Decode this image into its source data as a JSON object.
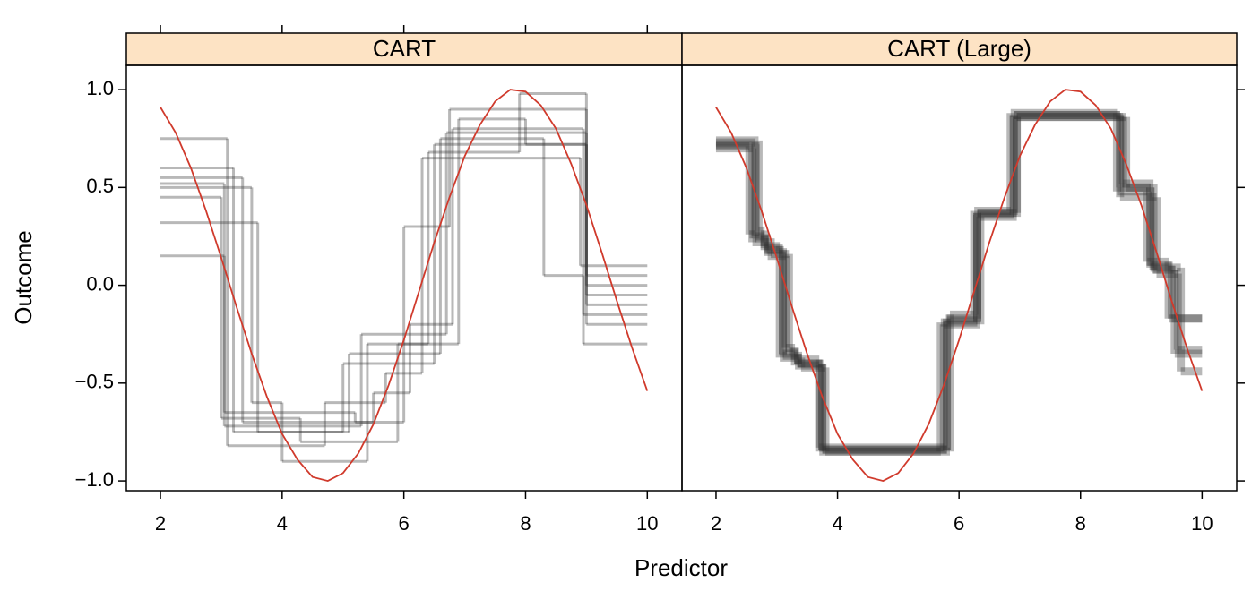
{
  "chart_data": [
    {
      "type": "line",
      "title": "CART",
      "y_label": "Outcome",
      "x_label": "Predictor",
      "xlim": [
        1.44,
        10.57
      ],
      "ylim": [
        -1.05,
        1.124
      ],
      "xticks": [
        2,
        4,
        6,
        8,
        10
      ],
      "yticks": [
        {
          "value": -1,
          "label": "−1.0"
        },
        {
          "value": -0.5,
          "label": "−0.5"
        },
        {
          "value": 0,
          "label": "0.0"
        },
        {
          "value": 0.5,
          "label": "0.5"
        },
        {
          "value": 1,
          "label": "1.0"
        }
      ],
      "strip_color": "#fde3c4",
      "step_color": "#333333",
      "step_opacity": 0.35,
      "step_width": 3,
      "steps": [
        {
          "bins": [
            2,
            3.05,
            5.3,
            6.7,
            9,
            10
          ],
          "values": [
            0.52,
            -0.72,
            -0.25,
            0.78,
            -0.05
          ]
        },
        {
          "bins": [
            2,
            3.2,
            5.0,
            6.5,
            9,
            10
          ],
          "values": [
            0.6,
            -0.75,
            -0.4,
            0.72,
            -0.1
          ]
        },
        {
          "bins": [
            2,
            3.0,
            4.3,
            5.9,
            6.9,
            8.0,
            9,
            10
          ],
          "values": [
            0.45,
            -0.68,
            -0.8,
            -0.3,
            0.85,
            0.72,
            0.05
          ]
        },
        {
          "bins": [
            2,
            3.35,
            5.5,
            6.1,
            6.8,
            8.95,
            10
          ],
          "values": [
            0.55,
            -0.7,
            -0.55,
            -0.2,
            0.8,
            -0.15
          ]
        },
        {
          "bins": [
            2,
            3.6,
            5.1,
            6.6,
            8.3,
            8.95,
            10
          ],
          "values": [
            0.32,
            -0.75,
            -0.35,
            0.75,
            0.05,
            -0.3
          ]
        },
        {
          "bins": [
            2,
            3.1,
            4.7,
            5.7,
            6.3,
            8.9,
            10
          ],
          "values": [
            0.75,
            -0.82,
            -0.6,
            -0.45,
            0.65,
            0.1
          ]
        },
        {
          "bins": [
            2,
            3.05,
            5.2,
            6.0,
            6.75,
            9.0,
            10
          ],
          "values": [
            0.15,
            -0.65,
            -0.7,
            0.3,
            0.9,
            -0.2
          ]
        },
        {
          "bins": [
            2,
            3.5,
            4.0,
            5.4,
            6.4,
            7.9,
            9.0,
            10
          ],
          "values": [
            0.5,
            -0.6,
            -0.9,
            -0.3,
            0.68,
            0.98,
            0.0
          ]
        }
      ],
      "series": [
        {
          "color": "#d03a2c",
          "x": [
            2,
            2.25,
            2.5,
            2.75,
            3,
            3.25,
            3.5,
            3.75,
            4,
            4.25,
            4.5,
            4.75,
            5,
            5.25,
            5.5,
            5.75,
            6,
            6.25,
            6.5,
            6.75,
            7,
            7.25,
            7.5,
            7.75,
            8,
            8.25,
            8.5,
            8.75,
            9,
            9.25,
            9.5,
            9.75,
            10
          ],
          "values": [
            0.91,
            0.78,
            0.6,
            0.38,
            0.14,
            -0.11,
            -0.35,
            -0.57,
            -0.76,
            -0.89,
            -0.98,
            -1.0,
            -0.96,
            -0.86,
            -0.71,
            -0.51,
            -0.28,
            -0.03,
            0.22,
            0.45,
            0.66,
            0.82,
            0.94,
            1.0,
            0.99,
            0.92,
            0.8,
            0.62,
            0.41,
            0.17,
            -0.08,
            -0.32,
            -0.54
          ]
        }
      ]
    },
    {
      "type": "line",
      "title": "CART (Large)",
      "xlim": [
        1.44,
        10.57
      ],
      "ylim": [
        -1.05,
        1.124
      ],
      "xticks": [
        2,
        4,
        6,
        8,
        10
      ],
      "yticks": [
        -1,
        -0.5,
        0,
        0.5,
        1
      ],
      "strip_color": "#fde3c4",
      "step_color": "#333333",
      "step_opacity": 0.35,
      "step_width": 9,
      "steps": [
        {
          "bins": [
            2,
            2.65,
            2.8,
            3.1,
            3.35,
            3.75,
            5.8,
            6.3,
            6.9,
            8.65,
            9.15,
            9.5,
            10
          ],
          "values": [
            0.72,
            0.25,
            0.18,
            -0.35,
            -0.4,
            -0.84,
            -0.18,
            0.37,
            0.87,
            0.5,
            0.1,
            -0.17
          ]
        },
        {
          "bins": [
            2,
            2.6,
            2.85,
            3.15,
            3.3,
            3.7,
            5.75,
            6.35,
            6.95,
            8.7,
            9.2,
            9.55,
            10
          ],
          "values": [
            0.7,
            0.22,
            0.15,
            -0.32,
            -0.38,
            -0.83,
            -0.2,
            0.35,
            0.86,
            0.52,
            0.08,
            -0.35
          ]
        },
        {
          "bins": [
            2,
            2.7,
            2.8,
            3.05,
            3.4,
            3.8,
            5.85,
            6.25,
            6.85,
            8.6,
            9.1,
            9.45,
            10
          ],
          "values": [
            0.74,
            0.28,
            0.2,
            -0.37,
            -0.42,
            -0.85,
            -0.15,
            0.38,
            0.88,
            0.48,
            0.12,
            -0.17
          ]
        },
        {
          "bins": [
            2,
            2.65,
            2.9,
            3.2,
            3.35,
            3.75,
            5.8,
            6.3,
            6.9,
            8.65,
            9.25,
            9.6,
            10
          ],
          "values": [
            0.73,
            0.24,
            0.16,
            -0.34,
            -0.4,
            -0.84,
            -0.17,
            0.36,
            0.87,
            0.45,
            0.06,
            -0.33
          ]
        },
        {
          "bins": [
            2,
            2.55,
            2.8,
            3.1,
            3.3,
            3.7,
            5.7,
            6.3,
            6.95,
            8.75,
            9.15,
            9.65,
            10
          ],
          "values": [
            0.71,
            0.26,
            0.19,
            -0.36,
            -0.41,
            -0.85,
            -0.19,
            0.37,
            0.86,
            0.5,
            0.09,
            -0.44
          ]
        }
      ],
      "series": [
        {
          "color": "#d03a2c",
          "x": [
            2,
            2.25,
            2.5,
            2.75,
            3,
            3.25,
            3.5,
            3.75,
            4,
            4.25,
            4.5,
            4.75,
            5,
            5.25,
            5.5,
            5.75,
            6,
            6.25,
            6.5,
            6.75,
            7,
            7.25,
            7.5,
            7.75,
            8,
            8.25,
            8.5,
            8.75,
            9,
            9.25,
            9.5,
            9.75,
            10
          ],
          "values": [
            0.91,
            0.78,
            0.6,
            0.38,
            0.14,
            -0.11,
            -0.35,
            -0.57,
            -0.76,
            -0.89,
            -0.98,
            -1.0,
            -0.96,
            -0.86,
            -0.71,
            -0.51,
            -0.28,
            -0.03,
            0.22,
            0.45,
            0.66,
            0.82,
            0.94,
            1.0,
            0.99,
            0.92,
            0.8,
            0.62,
            0.41,
            0.17,
            -0.08,
            -0.32,
            -0.54
          ]
        }
      ]
    }
  ]
}
